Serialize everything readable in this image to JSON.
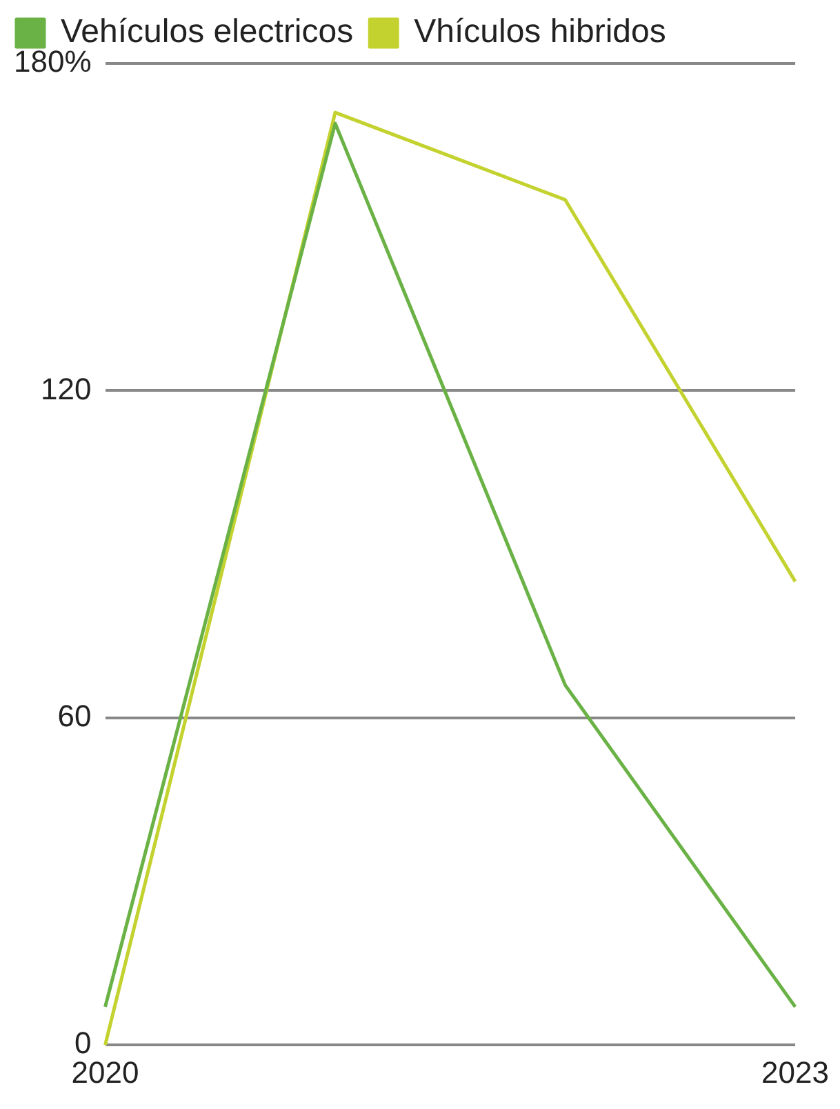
{
  "chart_data": {
    "type": "line",
    "categories": [
      "2020",
      null,
      null,
      "2023"
    ],
    "series": [
      {
        "name": "Vehículos electricos",
        "color": "#6ab245",
        "values": [
          7,
          169,
          66,
          7
        ]
      },
      {
        "name": "Vhículos hibridos",
        "color": "#c3d22f",
        "values": [
          0,
          171,
          155,
          85
        ]
      }
    ],
    "ylim": [
      0,
      180
    ],
    "yticks": [
      0,
      60,
      120,
      {
        "value": 180,
        "label": "180%"
      }
    ],
    "grid": "y",
    "legend": "top left",
    "marker": "none",
    "line_style": "solid"
  }
}
